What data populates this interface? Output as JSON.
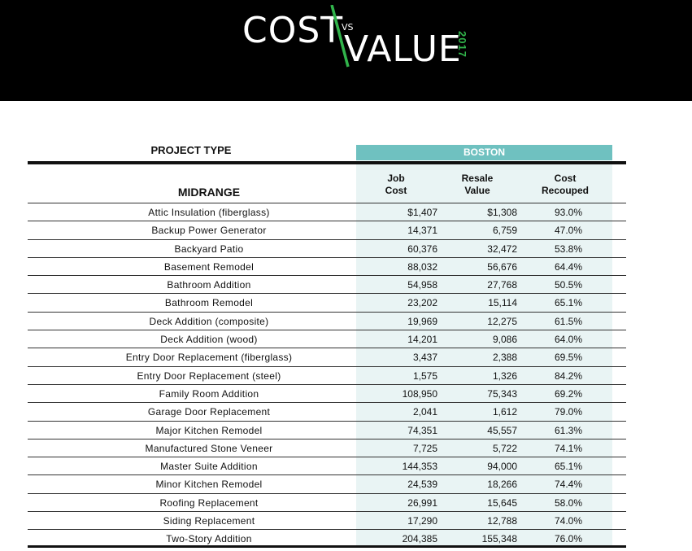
{
  "logo": {
    "cost": "COST",
    "vs": "VS",
    "value": "VALUE",
    "year": "2017",
    "accent_color": "#31b44b"
  },
  "table": {
    "project_type_label": "PROJECT TYPE",
    "city": "BOSTON",
    "city_color": "#6fc1c0",
    "category": "MIDRANGE",
    "columns": {
      "job_cost": [
        "Job",
        "Cost"
      ],
      "resale_value": [
        "Resale",
        "Value"
      ],
      "cost_recouped": [
        "Cost",
        "Recouped"
      ]
    },
    "rows": [
      {
        "project": "Attic Insulation (fiberglass)",
        "job_cost": "$1,407",
        "resale_value": "$1,308",
        "cost_recouped": "93.0%"
      },
      {
        "project": "Backup Power Generator",
        "job_cost": "14,371",
        "resale_value": "6,759",
        "cost_recouped": "47.0%"
      },
      {
        "project": "Backyard Patio",
        "job_cost": "60,376",
        "resale_value": "32,472",
        "cost_recouped": "53.8%"
      },
      {
        "project": "Basement Remodel",
        "job_cost": "88,032",
        "resale_value": "56,676",
        "cost_recouped": "64.4%"
      },
      {
        "project": "Bathroom Addition",
        "job_cost": "54,958",
        "resale_value": "27,768",
        "cost_recouped": "50.5%"
      },
      {
        "project": "Bathroom Remodel",
        "job_cost": "23,202",
        "resale_value": "15,114",
        "cost_recouped": "65.1%"
      },
      {
        "project": "Deck Addition (composite)",
        "job_cost": "19,969",
        "resale_value": "12,275",
        "cost_recouped": "61.5%"
      },
      {
        "project": "Deck Addition (wood)",
        "job_cost": "14,201",
        "resale_value": "9,086",
        "cost_recouped": "64.0%"
      },
      {
        "project": "Entry Door Replacement (fiberglass)",
        "job_cost": "3,437",
        "resale_value": "2,388",
        "cost_recouped": "69.5%"
      },
      {
        "project": "Entry Door Replacement (steel)",
        "job_cost": "1,575",
        "resale_value": "1,326",
        "cost_recouped": "84.2%"
      },
      {
        "project": "Family Room Addition",
        "job_cost": "108,950",
        "resale_value": "75,343",
        "cost_recouped": "69.2%"
      },
      {
        "project": "Garage Door Replacement",
        "job_cost": "2,041",
        "resale_value": "1,612",
        "cost_recouped": "79.0%"
      },
      {
        "project": "Major Kitchen Remodel",
        "job_cost": "74,351",
        "resale_value": "45,557",
        "cost_recouped": "61.3%"
      },
      {
        "project": "Manufactured Stone Veneer",
        "job_cost": "7,725",
        "resale_value": "5,722",
        "cost_recouped": "74.1%"
      },
      {
        "project": "Master Suite Addition",
        "job_cost": "144,353",
        "resale_value": "94,000",
        "cost_recouped": "65.1%"
      },
      {
        "project": "Minor Kitchen Remodel",
        "job_cost": "24,539",
        "resale_value": "18,266",
        "cost_recouped": "74.4%"
      },
      {
        "project": "Roofing Replacement",
        "job_cost": "26,991",
        "resale_value": "15,645",
        "cost_recouped": "58.0%"
      },
      {
        "project": "Siding Replacement",
        "job_cost": "17,290",
        "resale_value": "12,788",
        "cost_recouped": "74.0%"
      },
      {
        "project": "Two-Story Addition",
        "job_cost": "204,385",
        "resale_value": "155,348",
        "cost_recouped": "76.0%"
      }
    ]
  }
}
